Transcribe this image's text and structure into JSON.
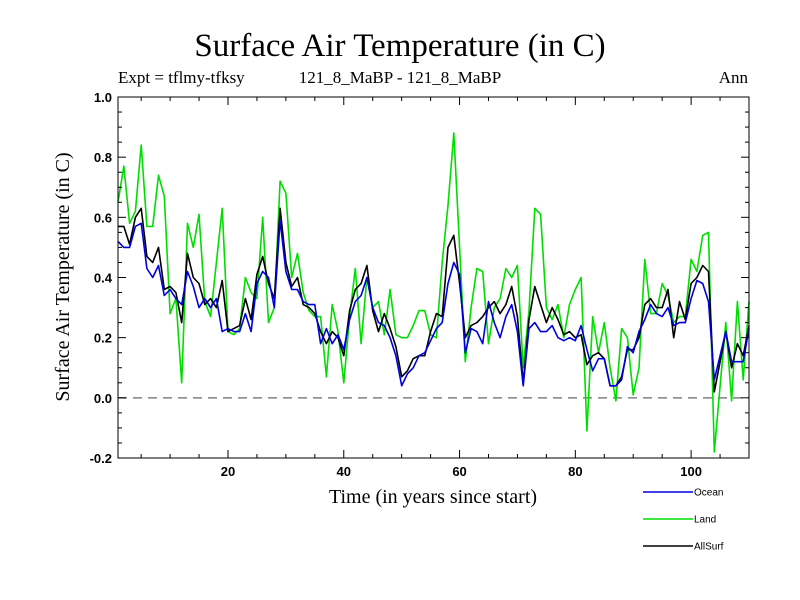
{
  "title": "Surface Air Temperature (in C)",
  "subtitle_left": "Expt = tflmy-tfksy",
  "subtitle_center": "121_8_MaBP - 121_8_MaBP",
  "subtitle_right": "Ann",
  "chart_data": {
    "type": "line",
    "title": "Surface Air Temperature (in C)",
    "xlabel": "Time (in years since start)",
    "ylabel": "Surface Air Temperature (in C)",
    "xlim": [
      1,
      110
    ],
    "ylim": [
      -0.2,
      1.0
    ],
    "xticks": [
      20,
      40,
      60,
      80,
      100
    ],
    "xtick_labels": [
      "20",
      "40",
      "60",
      "80",
      "100"
    ],
    "yticks": [
      -0.2,
      0.0,
      0.2,
      0.4,
      0.6,
      0.8,
      1.0
    ],
    "ytick_labels": [
      "-0.2",
      "0.0",
      "0.2",
      "0.4",
      "0.6",
      "0.8",
      "1.0"
    ],
    "reference_line": {
      "y": 0.0,
      "style": "dashed",
      "color": "#808080"
    },
    "legend_position": "bottom-right outside",
    "x": [
      1,
      2,
      3,
      4,
      5,
      6,
      7,
      8,
      9,
      10,
      11,
      12,
      13,
      14,
      15,
      16,
      17,
      18,
      19,
      20,
      21,
      22,
      23,
      24,
      25,
      26,
      27,
      28,
      29,
      30,
      31,
      32,
      33,
      34,
      35,
      36,
      37,
      38,
      39,
      40,
      41,
      42,
      43,
      44,
      45,
      46,
      47,
      48,
      49,
      50,
      51,
      52,
      53,
      54,
      55,
      56,
      57,
      58,
      59,
      60,
      61,
      62,
      63,
      64,
      65,
      66,
      67,
      68,
      69,
      70,
      71,
      72,
      73,
      74,
      75,
      76,
      77,
      78,
      79,
      80,
      81,
      82,
      83,
      84,
      85,
      86,
      87,
      88,
      89,
      90,
      91,
      92,
      93,
      94,
      95,
      96,
      97,
      98,
      99,
      100,
      101,
      102,
      103,
      104,
      105,
      106,
      107,
      108,
      109,
      110
    ],
    "series": [
      {
        "name": "Land",
        "color": "#00dd00",
        "values": [
          0.65,
          0.77,
          0.58,
          0.62,
          0.84,
          0.57,
          0.57,
          0.74,
          0.67,
          0.28,
          0.33,
          0.05,
          0.58,
          0.5,
          0.61,
          0.32,
          0.27,
          0.45,
          0.63,
          0.22,
          0.21,
          0.23,
          0.4,
          0.35,
          0.33,
          0.6,
          0.25,
          0.3,
          0.72,
          0.68,
          0.4,
          0.48,
          0.35,
          0.29,
          0.27,
          0.27,
          0.07,
          0.31,
          0.22,
          0.05,
          0.27,
          0.43,
          0.18,
          0.4,
          0.3,
          0.32,
          0.21,
          0.36,
          0.21,
          0.2,
          0.2,
          0.24,
          0.29,
          0.29,
          0.21,
          0.2,
          0.45,
          0.64,
          0.88,
          0.5,
          0.12,
          0.3,
          0.43,
          0.42,
          0.18,
          0.3,
          0.33,
          0.43,
          0.4,
          0.44,
          0.1,
          0.29,
          0.63,
          0.61,
          0.3,
          0.26,
          0.31,
          0.2,
          0.31,
          0.36,
          0.4,
          -0.11,
          0.27,
          0.15,
          0.25,
          0.1,
          -0.01,
          0.23,
          0.2,
          0.01,
          0.1,
          0.46,
          0.28,
          0.28,
          0.38,
          0.34,
          0.25,
          0.27,
          0.27,
          0.46,
          0.42,
          0.54,
          0.55,
          -0.18,
          0.04,
          0.25,
          -0.01,
          0.32,
          0.06,
          0.32
        ]
      },
      {
        "name": "AllSurf",
        "color": "#000000",
        "values": [
          0.57,
          0.57,
          0.51,
          0.6,
          0.63,
          0.47,
          0.45,
          0.5,
          0.36,
          0.37,
          0.35,
          0.25,
          0.48,
          0.4,
          0.38,
          0.31,
          0.33,
          0.3,
          0.39,
          0.22,
          0.23,
          0.24,
          0.33,
          0.26,
          0.41,
          0.47,
          0.38,
          0.33,
          0.63,
          0.45,
          0.37,
          0.4,
          0.31,
          0.3,
          0.28,
          0.22,
          0.18,
          0.22,
          0.2,
          0.14,
          0.29,
          0.36,
          0.38,
          0.44,
          0.29,
          0.22,
          0.28,
          0.23,
          0.17,
          0.07,
          0.09,
          0.13,
          0.14,
          0.14,
          0.22,
          0.28,
          0.27,
          0.5,
          0.54,
          0.38,
          0.2,
          0.24,
          0.25,
          0.27,
          0.3,
          0.32,
          0.28,
          0.31,
          0.37,
          0.27,
          0.05,
          0.26,
          0.37,
          0.31,
          0.25,
          0.3,
          0.26,
          0.21,
          0.22,
          0.2,
          0.21,
          0.11,
          0.14,
          0.15,
          0.13,
          0.04,
          0.04,
          0.07,
          0.16,
          0.16,
          0.2,
          0.31,
          0.33,
          0.3,
          0.3,
          0.36,
          0.2,
          0.32,
          0.26,
          0.38,
          0.4,
          0.44,
          0.42,
          0.02,
          0.12,
          0.22,
          0.1,
          0.18,
          0.14,
          0.24
        ]
      },
      {
        "name": "Ocean",
        "color": "#0000dd",
        "values": [
          0.52,
          0.5,
          0.5,
          0.57,
          0.58,
          0.43,
          0.4,
          0.44,
          0.34,
          0.36,
          0.33,
          0.31,
          0.42,
          0.37,
          0.3,
          0.33,
          0.3,
          0.33,
          0.22,
          0.23,
          0.22,
          0.22,
          0.28,
          0.22,
          0.38,
          0.42,
          0.4,
          0.3,
          0.59,
          0.42,
          0.36,
          0.36,
          0.32,
          0.31,
          0.31,
          0.18,
          0.23,
          0.18,
          0.21,
          0.16,
          0.26,
          0.32,
          0.34,
          0.4,
          0.3,
          0.25,
          0.24,
          0.2,
          0.14,
          0.04,
          0.08,
          0.1,
          0.14,
          0.15,
          0.19,
          0.23,
          0.25,
          0.38,
          0.45,
          0.41,
          0.15,
          0.23,
          0.22,
          0.18,
          0.32,
          0.25,
          0.2,
          0.27,
          0.31,
          0.22,
          0.04,
          0.23,
          0.25,
          0.22,
          0.22,
          0.24,
          0.2,
          0.19,
          0.2,
          0.19,
          0.24,
          0.16,
          0.09,
          0.13,
          0.13,
          0.04,
          0.04,
          0.06,
          0.17,
          0.15,
          0.22,
          0.26,
          0.31,
          0.28,
          0.27,
          0.3,
          0.24,
          0.25,
          0.25,
          0.33,
          0.39,
          0.38,
          0.32,
          0.06,
          0.14,
          0.22,
          0.12,
          0.12,
          0.12,
          0.23
        ]
      }
    ]
  }
}
